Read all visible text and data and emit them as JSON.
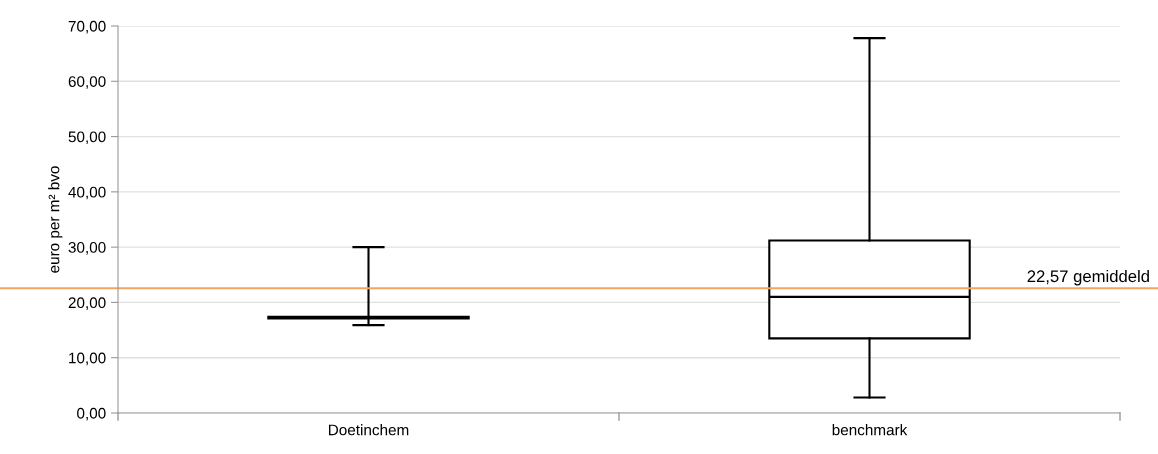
{
  "chart_data": {
    "type": "box",
    "ylabel": "euro per m² bvo",
    "categories": [
      "Doetinchem",
      "benchmark"
    ],
    "boxes": [
      {
        "low": 15.9,
        "q1": 17.1,
        "median": 17.2,
        "q3": 17.4,
        "high": 30
      },
      {
        "low": 2.8,
        "q1": 13.5,
        "median": 21.0,
        "q3": 31.2,
        "high": 67.8
      }
    ],
    "ylim": [
      0,
      70
    ],
    "yticks": [
      {
        "value": 0,
        "label": "0,00"
      },
      {
        "value": 10,
        "label": "10,00"
      },
      {
        "value": 20,
        "label": "20,00"
      },
      {
        "value": 30,
        "label": "30,00"
      },
      {
        "value": 40,
        "label": "40,00"
      },
      {
        "value": 50,
        "label": "50,00"
      },
      {
        "value": 60,
        "label": "60,00"
      },
      {
        "value": 70,
        "label": "70,00"
      }
    ],
    "grid": "y",
    "ref_lines": [
      {
        "axis": "y",
        "value": 22.57,
        "label": "22,57 gemiddeld",
        "color": "#f4a460"
      }
    ]
  }
}
